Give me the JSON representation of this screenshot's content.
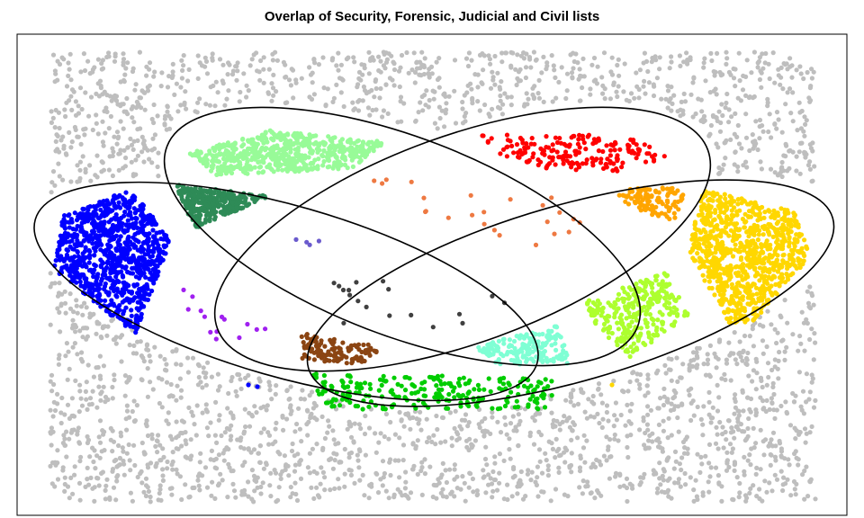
{
  "title": "Overlap of Security, Forensic, Judicial and Civil lists",
  "chart_data": {
    "type": "venn-scatter",
    "sets": 4,
    "background_color": "#bebebe",
    "regions": [
      {
        "color": "#0000ff",
        "density": "high"
      },
      {
        "color": "#98fb98",
        "density": "high"
      },
      {
        "color": "#2e8b57",
        "density": "high"
      },
      {
        "color": "#ff0000",
        "density": "medium"
      },
      {
        "color": "#ffa500",
        "density": "medium"
      },
      {
        "color": "#ffd700",
        "density": "high"
      },
      {
        "color": "#adff2f",
        "density": "medium"
      },
      {
        "color": "#7fffd4",
        "density": "medium"
      },
      {
        "color": "#00cd00",
        "density": "medium"
      },
      {
        "color": "#8b4513",
        "density": "medium"
      },
      {
        "color": "#a020f0",
        "density": "low"
      },
      {
        "color": "#6a5acd",
        "density": "low"
      },
      {
        "color": "#ee7942",
        "density": "low"
      },
      {
        "color": "#404040",
        "density": "low"
      }
    ]
  }
}
